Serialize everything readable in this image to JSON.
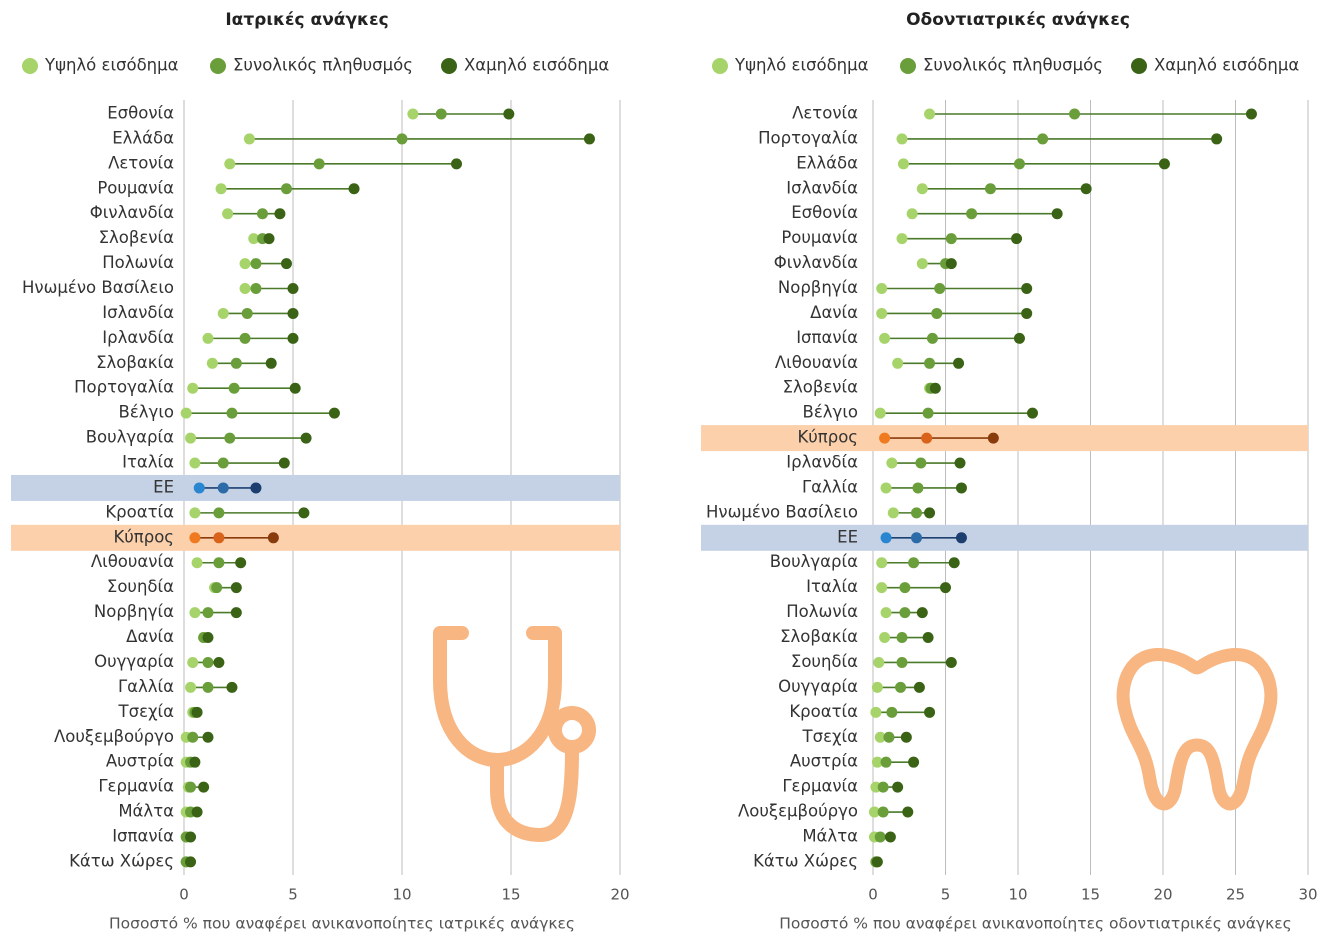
{
  "chart_data": [
    {
      "type": "dot",
      "title": "Ιατρικές ανάγκες",
      "xlabel": "Ποσοστό % που αναφέρει ανικανοποίητες ιατρικές ανάγκες",
      "categories": [
        "Εσθονία",
        "Ελλάδα",
        "Λετονία",
        "Ρουμανία",
        "Φινλανδία",
        "Σλοβενία",
        "Πολωνία",
        "Ηνωμένο Βασίλειο",
        "Ισλανδία",
        "Ιρλανδία",
        "Σλοβακία",
        "Πορτογαλία",
        "Βέλγιο",
        "Βουλγαρία",
        "Ιταλία",
        "ΕΕ",
        "Κροατία",
        "Κύπρος",
        "Λιθουανία",
        "Σουηδία",
        "Νορβηγία",
        "Δανία",
        "Ουγγαρία",
        "Γαλλία",
        "Τσεχία",
        "Λουξεμβούργο",
        "Αυστρία",
        "Γερμανία",
        "Μάλτα",
        "Ισπανία",
        "Κάτω Χώρες"
      ],
      "series": [
        {
          "name": "Υψηλό εισόδημα",
          "color": "#a6d46a",
          "values": [
            10.5,
            3.0,
            2.1,
            1.7,
            2.0,
            3.2,
            2.8,
            2.8,
            1.8,
            1.1,
            1.3,
            0.4,
            0.1,
            0.3,
            0.5,
            0.7,
            0.5,
            0.5,
            0.6,
            1.4,
            0.5,
            0.9,
            0.4,
            0.3,
            0.4,
            0.1,
            0.1,
            0.2,
            0.1,
            0.1,
            0.1
          ]
        },
        {
          "name": "Συνολικός πληθυσμός",
          "color": "#6a9e3a",
          "values": [
            11.8,
            10.0,
            6.2,
            4.7,
            3.6,
            3.6,
            3.3,
            3.3,
            2.9,
            2.8,
            2.4,
            2.3,
            2.2,
            2.1,
            1.8,
            1.8,
            1.6,
            1.6,
            1.6,
            1.5,
            1.1,
            0.9,
            1.1,
            1.1,
            0.5,
            0.4,
            0.3,
            0.3,
            0.3,
            0.1,
            0.1
          ]
        },
        {
          "name": "Χαμηλό εισόδημα",
          "color": "#3a6316",
          "values": [
            14.9,
            18.6,
            12.5,
            7.8,
            4.4,
            3.9,
            4.7,
            5.0,
            5.0,
            5.0,
            4.0,
            5.1,
            6.9,
            5.6,
            4.6,
            3.3,
            5.5,
            4.1,
            2.6,
            2.4,
            2.4,
            1.1,
            1.6,
            2.2,
            0.6,
            1.1,
            0.5,
            0.9,
            0.6,
            0.3,
            0.3
          ]
        }
      ],
      "line_color": "#4a7a2a",
      "highlights": [
        {
          "category": "ΕΕ",
          "band": "#c5d2e6",
          "colors": [
            "#2a86d0",
            "#2c6aa8",
            "#1c3f70"
          ]
        },
        {
          "category": "Κύπρος",
          "band": "#fbd0ab",
          "colors": [
            "#f07a20",
            "#d9631a",
            "#8a3b0b"
          ]
        }
      ],
      "xlim": [
        0,
        20
      ],
      "xticks": [
        0,
        5,
        10,
        15,
        20
      ],
      "grid": true
    },
    {
      "type": "dot",
      "title": "Οδοντιατρικές ανάγκες",
      "xlabel": "Ποσοστό % που αναφέρει ανικανοποίητες οδοντιατρικές ανάγκες",
      "categories": [
        "Λετονία",
        "Πορτογαλία",
        "Ελλάδα",
        "Ισλανδία",
        "Εσθονία",
        "Ρουμανία",
        "Φινλανδία",
        "Νορβηγία",
        "Δανία",
        "Ισπανία",
        "Λιθουανία",
        "Σλοβενία",
        "Βέλγιο",
        "Κύπρος",
        "Ιρλανδία",
        "Γαλλία",
        "Ηνωμένο Βασίλειο",
        "ΕΕ",
        "Βουλγαρία",
        "Ιταλία",
        "Πολωνία",
        "Σλοβακία",
        "Σουηδία",
        "Ουγγαρία",
        "Κροατία",
        "Τσεχία",
        "Αυστρία",
        "Γερμανία",
        "Λουξεμβούργο",
        "Μάλτα",
        "Κάτω Χώρες"
      ],
      "series": [
        {
          "name": "Υψηλό εισόδημα",
          "color": "#a6d46a",
          "values": [
            3.9,
            2.0,
            2.1,
            3.4,
            2.7,
            2.0,
            3.4,
            0.6,
            0.6,
            0.8,
            1.7,
            3.9,
            0.5,
            0.8,
            1.3,
            0.9,
            1.4,
            0.9,
            0.6,
            0.6,
            0.9,
            0.8,
            0.4,
            0.3,
            0.2,
            0.5,
            0.3,
            0.2,
            0.1,
            0.1,
            0.2
          ]
        },
        {
          "name": "Συνολικός πληθυσμός",
          "color": "#6a9e3a",
          "values": [
            13.9,
            11.7,
            10.1,
            8.1,
            6.8,
            5.4,
            5.0,
            4.6,
            4.4,
            4.1,
            3.9,
            4.0,
            3.8,
            3.7,
            3.3,
            3.1,
            3.0,
            3.0,
            2.8,
            2.2,
            2.2,
            2.0,
            2.0,
            1.9,
            1.3,
            1.1,
            0.9,
            0.7,
            0.7,
            0.5,
            0.2
          ]
        },
        {
          "name": "Χαμηλό εισόδημα",
          "color": "#3a6316",
          "values": [
            26.1,
            23.7,
            20.1,
            14.7,
            12.7,
            9.9,
            5.4,
            10.6,
            10.6,
            10.1,
            5.9,
            4.3,
            11.0,
            8.3,
            6.0,
            6.1,
            3.9,
            6.1,
            5.6,
            5.0,
            3.4,
            3.8,
            5.4,
            3.2,
            3.9,
            2.3,
            2.8,
            1.7,
            2.4,
            1.2,
            0.3
          ]
        }
      ],
      "line_color": "#4a7a2a",
      "highlights": [
        {
          "category": "ΕΕ",
          "band": "#c5d2e6",
          "colors": [
            "#2a86d0",
            "#2c6aa8",
            "#1c3f70"
          ]
        },
        {
          "category": "Κύπρος",
          "band": "#fbd0ab",
          "colors": [
            "#f07a20",
            "#d9631a",
            "#8a3b0b"
          ]
        }
      ],
      "xlim": [
        0,
        30
      ],
      "xticks": [
        0,
        5,
        10,
        15,
        20,
        25,
        30
      ],
      "grid": true
    }
  ]
}
